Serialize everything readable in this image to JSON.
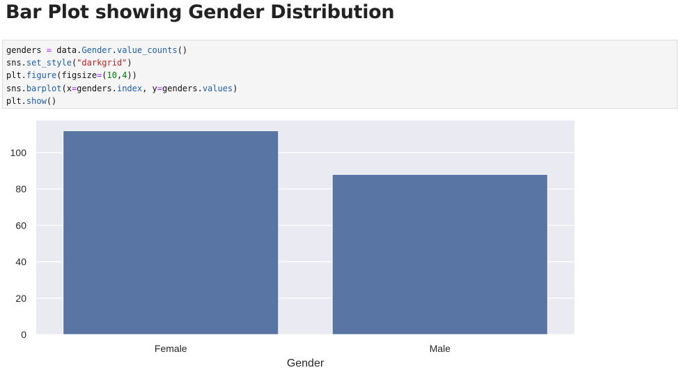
{
  "page": {
    "heading": "Bar Plot showing Gender Distribution"
  },
  "code_cell": {
    "lines": [
      [
        {
          "t": "genders ",
          "c": "k"
        },
        {
          "t": "=",
          "c": "op"
        },
        {
          "t": " data.",
          "c": "k"
        },
        {
          "t": "Gender",
          "c": "attr"
        },
        {
          "t": ".",
          "c": "k"
        },
        {
          "t": "value_counts",
          "c": "attr"
        },
        {
          "t": "()",
          "c": "k"
        }
      ],
      [
        {
          "t": "sns.",
          "c": "k"
        },
        {
          "t": "set_style",
          "c": "attr"
        },
        {
          "t": "(",
          "c": "k"
        },
        {
          "t": "\"darkgrid\"",
          "c": "str"
        },
        {
          "t": ")",
          "c": "k"
        }
      ],
      [
        {
          "t": "plt.",
          "c": "k"
        },
        {
          "t": "figure",
          "c": "attr"
        },
        {
          "t": "(figsize",
          "c": "k"
        },
        {
          "t": "=",
          "c": "op"
        },
        {
          "t": "(",
          "c": "k"
        },
        {
          "t": "10",
          "c": "num"
        },
        {
          "t": ",",
          "c": "k"
        },
        {
          "t": "4",
          "c": "num"
        },
        {
          "t": "))",
          "c": "k"
        }
      ],
      [
        {
          "t": "sns.",
          "c": "k"
        },
        {
          "t": "barplot",
          "c": "attr"
        },
        {
          "t": "(x",
          "c": "k"
        },
        {
          "t": "=",
          "c": "op"
        },
        {
          "t": "genders.",
          "c": "k"
        },
        {
          "t": "index",
          "c": "attr"
        },
        {
          "t": ", y",
          "c": "k"
        },
        {
          "t": "=",
          "c": "op"
        },
        {
          "t": "genders.",
          "c": "k"
        },
        {
          "t": "values",
          "c": "attr"
        },
        {
          "t": ")",
          "c": "k"
        }
      ],
      [
        {
          "t": "plt.",
          "c": "k"
        },
        {
          "t": "show",
          "c": "attr"
        },
        {
          "t": "()",
          "c": "k"
        }
      ]
    ]
  },
  "chart_data": {
    "type": "bar",
    "title": "",
    "categories": [
      "Female",
      "Male"
    ],
    "values": [
      112,
      88
    ],
    "xlabel": "Gender",
    "ylabel": "",
    "ylim": [
      0,
      117.6
    ],
    "yticks": [
      0,
      20,
      40,
      60,
      80,
      100
    ],
    "grid": true,
    "style": "darkgrid",
    "colors": {
      "background": "#eaeaf2",
      "grid": "#ffffff",
      "bar": "#5975a4",
      "text": "#262626"
    }
  }
}
